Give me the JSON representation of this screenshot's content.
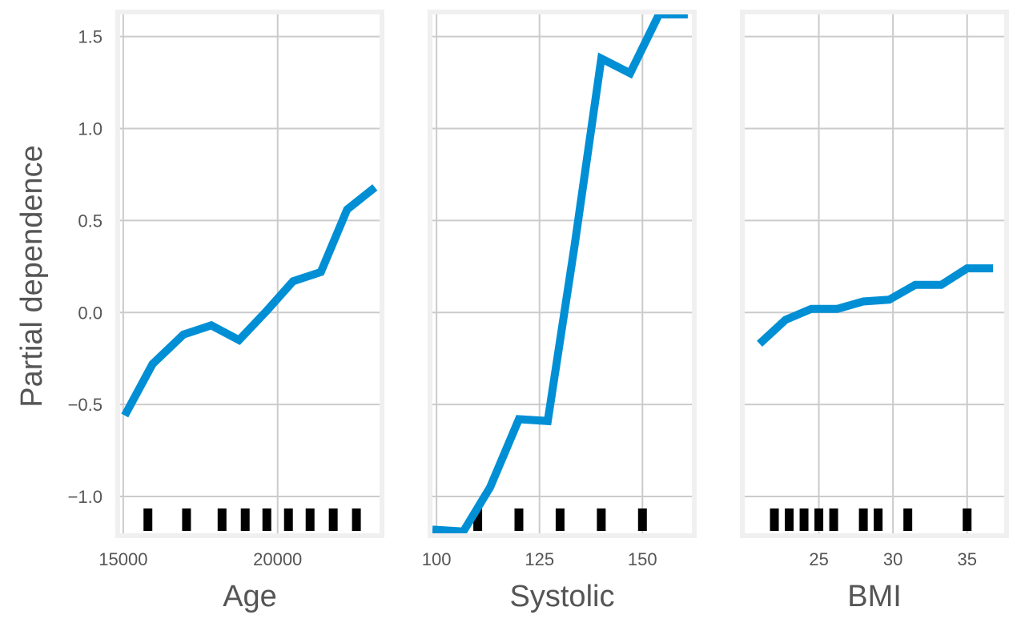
{
  "figure": {
    "ylabel": "Partial dependence",
    "line_color": "#008fd5",
    "rug_color": "#000000",
    "grid_color": "#cbcbcb",
    "frame_color": "#f0f0f0",
    "text_color": "#555555"
  },
  "chart_data": [
    {
      "type": "line",
      "xlabel": "Age",
      "ylabel": "Partial dependence",
      "xlim": [
        14900,
        23300
      ],
      "ylim": [
        -1.2,
        1.62
      ],
      "xticks": [
        15000,
        20000
      ],
      "yticks": [
        -1.0,
        -0.5,
        0.0,
        0.5,
        1.0,
        1.5
      ],
      "ytick_labels": [
        "−1.0",
        "−0.5",
        "0.0",
        "0.5",
        "1.0",
        "1.5"
      ],
      "x": [
        15050,
        15950,
        16950,
        17850,
        18750,
        19650,
        20500,
        21400,
        22250,
        23150
      ],
      "y": [
        -0.56,
        -0.28,
        -0.12,
        -0.07,
        -0.15,
        0.01,
        0.17,
        0.22,
        0.56,
        0.68
      ],
      "rug": [
        15800,
        17050,
        18200,
        18950,
        19650,
        20350,
        21050,
        21800,
        22550
      ],
      "grid": true
    },
    {
      "type": "line",
      "xlabel": "Systolic",
      "xlim": [
        99,
        162
      ],
      "ylim": [
        -1.2,
        1.62
      ],
      "xticks": [
        100,
        125,
        150
      ],
      "yticks": [
        -1.0,
        -0.5,
        0.0,
        0.5,
        1.0,
        1.5
      ],
      "x": [
        99,
        106.5,
        113,
        120,
        127,
        133.5,
        140,
        147,
        154,
        161
      ],
      "y": [
        -1.18,
        -1.19,
        -0.95,
        -0.58,
        -0.59,
        0.36,
        1.38,
        1.3,
        1.62,
        1.62
      ],
      "rug": [
        110,
        120,
        130,
        140,
        150
      ],
      "grid": true
    },
    {
      "type": "line",
      "xlabel": "BMI",
      "xlim": [
        20.0,
        37.5
      ],
      "ylim": [
        -1.2,
        1.62
      ],
      "xticks": [
        25,
        30,
        35
      ],
      "yticks": [
        -1.0,
        -0.5,
        0.0,
        0.5,
        1.0,
        1.5
      ],
      "x": [
        21.0,
        22.75,
        24.5,
        26.25,
        28.0,
        29.75,
        31.5,
        33.25,
        35.0,
        36.75
      ],
      "y": [
        -0.17,
        -0.04,
        0.02,
        0.02,
        0.06,
        0.07,
        0.15,
        0.15,
        0.24,
        0.24
      ],
      "rug": [
        22,
        23,
        24,
        25,
        26,
        28,
        29,
        31,
        35
      ],
      "grid": true
    }
  ]
}
